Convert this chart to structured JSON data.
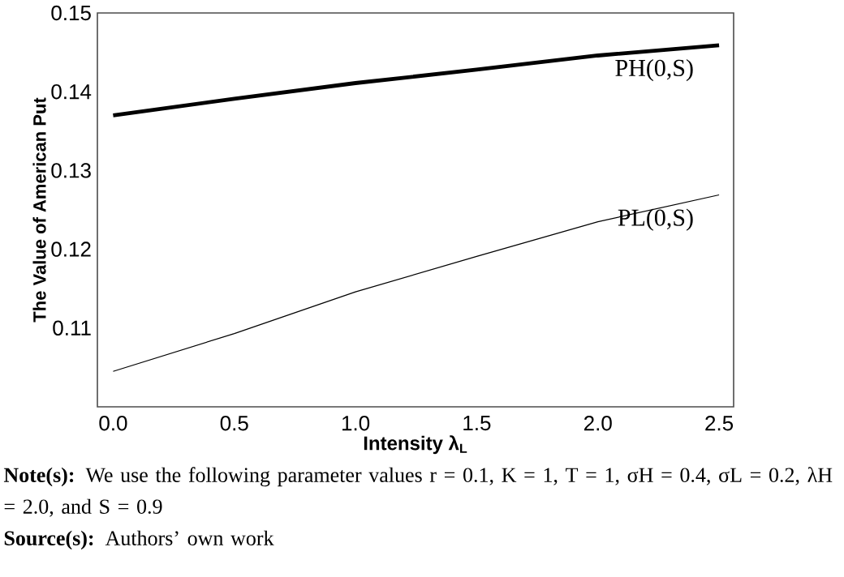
{
  "chart_data": {
    "type": "line",
    "xlabel": "Intensity λ$_{L}$",
    "ylabel": "The Value of American Put",
    "x": [
      0,
      0.5,
      1.0,
      1.5,
      2.0,
      2.5
    ],
    "series": [
      {
        "name": "PH(0,S)",
        "color": "#000000",
        "values": [
          0.137,
          0.1391,
          0.1411,
          0.1428,
          0.1446,
          0.1459
        ]
      },
      {
        "name": "PL(0,S)",
        "color": "#000000",
        "values": [
          0.1045,
          0.1093,
          0.1146,
          0.1191,
          0.1235,
          0.1269
        ]
      }
    ],
    "xlim": [
      -0.065,
      2.56
    ],
    "ylim": [
      0.1,
      0.15
    ],
    "xticks": [
      {
        "value": 0,
        "label": "0.0"
      },
      0.5,
      {
        "value": 1,
        "label": "1.0"
      },
      1.5,
      {
        "value": 2,
        "label": "2.0"
      },
      2.5
    ],
    "yticks": [
      0.11,
      0.12,
      0.13,
      0.14,
      0.15
    ],
    "annotations": [
      "**Note(s):** We use the following parameter values r = 0.1, K = 1, T = 1, σH = 0.4, σL = 0.2, λH = 2.0, and S = 0.9",
      "**Source(s):** Authors’ own work"
    ]
  }
}
